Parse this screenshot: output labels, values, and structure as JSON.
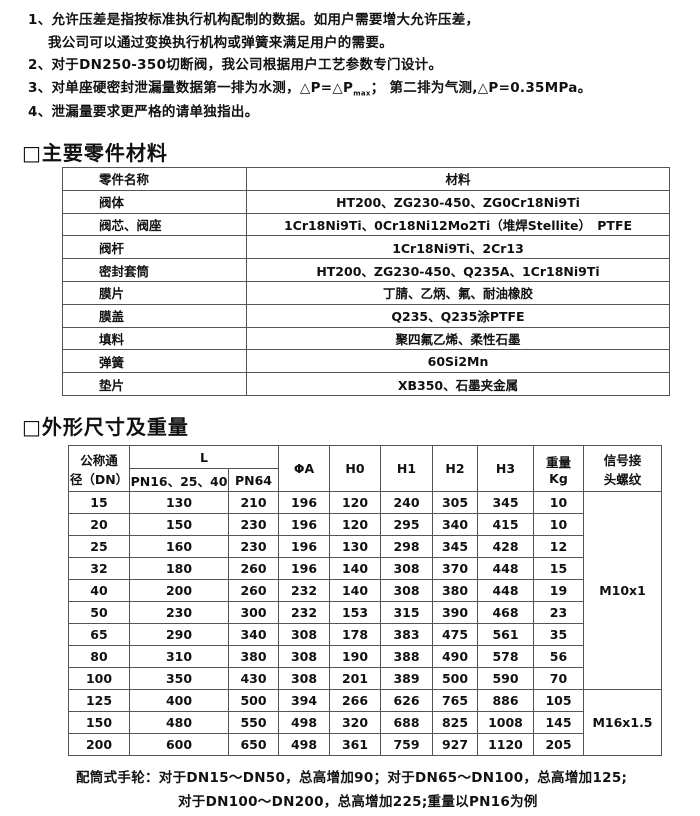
{
  "notes": [
    "1、允许压差是指按标准执行机构配制的数据。如用户需要增大允许压差，",
    "我公司可以通过变换执行机构或弹簧来满足用户的需要。",
    "2、对于DN250-350切断阀，我公司根据用户工艺参数专门设计。",
    "3、对单座硬密封泄漏量数据第一排为水测，△P=△P",
    "max",
    "； 第二排为气测,△P=0.35MPa。",
    "4、泄漏量要求更严格的请单独指出。"
  ],
  "materials_section": {
    "title": "□主要零件材料",
    "headers": [
      "零件名称",
      "材料"
    ],
    "rows": [
      [
        "阀体",
        "HT200、ZG230-450、ZG0Cr18Ni9Ti"
      ],
      [
        "阀芯、阀座",
        "1Cr18Ni9Ti、0Cr18Ni12Mo2Ti（堆焊Stellite）　PTFE"
      ],
      [
        "阀杆",
        "1Cr18Ni9Ti、2Cr13"
      ],
      [
        "密封套筒",
        "HT200、ZG230-450、Q235A、1Cr18Ni9Ti"
      ],
      [
        "膜片",
        "丁腈、乙炳、氟、耐油橡胶"
      ],
      [
        "膜盖",
        "Q235、Q235涂PTFE"
      ],
      [
        "填料",
        "聚四氟乙烯、柔性石墨"
      ],
      [
        "弹簧",
        "60Si2Mn"
      ],
      [
        "垫片",
        "XB350、石墨夹金属"
      ]
    ]
  },
  "dimensions_section": {
    "title": "□外形尺寸及重量",
    "headers": {
      "dn_line1": "公称通",
      "dn_line2": "径（DN）",
      "L": "L",
      "L_pn16": "PN16、25、40",
      "L_pn64": "PN64",
      "phiA": "ΦA",
      "H0": "H0",
      "H1": "H1",
      "H2": "H2",
      "H3": "H3",
      "weight_line1": "重量",
      "weight_line2": "Kg",
      "signal_line1": "信号接",
      "signal_line2": "头螺纹"
    },
    "rows": [
      [
        "15",
        "130",
        "210",
        "196",
        "120",
        "240",
        "305",
        "345",
        "10"
      ],
      [
        "20",
        "150",
        "230",
        "196",
        "120",
        "295",
        "340",
        "415",
        "10"
      ],
      [
        "25",
        "160",
        "230",
        "196",
        "130",
        "298",
        "345",
        "428",
        "12"
      ],
      [
        "32",
        "180",
        "260",
        "196",
        "140",
        "308",
        "370",
        "448",
        "15"
      ],
      [
        "40",
        "200",
        "260",
        "232",
        "140",
        "308",
        "380",
        "448",
        "19"
      ],
      [
        "50",
        "230",
        "300",
        "232",
        "153",
        "315",
        "390",
        "468",
        "23"
      ],
      [
        "65",
        "290",
        "340",
        "308",
        "178",
        "383",
        "475",
        "561",
        "35"
      ],
      [
        "80",
        "310",
        "380",
        "308",
        "190",
        "388",
        "490",
        "578",
        "56"
      ],
      [
        "100",
        "350",
        "430",
        "308",
        "201",
        "389",
        "500",
        "590",
        "70"
      ],
      [
        "125",
        "400",
        "500",
        "394",
        "266",
        "626",
        "765",
        "886",
        "105"
      ],
      [
        "150",
        "480",
        "550",
        "498",
        "320",
        "688",
        "825",
        "1008",
        "145"
      ],
      [
        "200",
        "600",
        "650",
        "498",
        "361",
        "759",
        "927",
        "1120",
        "205"
      ]
    ],
    "signal_threads": [
      "M10x1",
      "M16x1.5"
    ]
  },
  "footer": [
    "配筒式手轮：对于DN15～DN50，总高增加90；对于DN65～DN100，总高增加125;",
    "对于DN100～DN200，总高增加225;重量以PN16为例"
  ]
}
